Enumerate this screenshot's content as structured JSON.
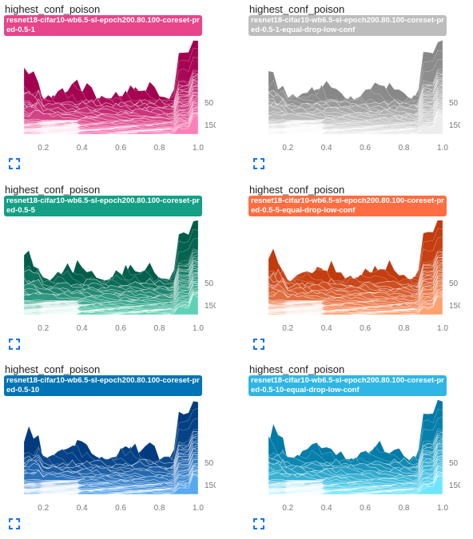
{
  "cards": [
    {
      "title": "highest_conf_poison",
      "run": "resnet18-cifar10-wb6.5-sl-epoch200.80.100-coreset-pred-0.5-1",
      "tag_color": "#e8458b",
      "dark": "#a3004f",
      "light": "#ff7fb8"
    },
    {
      "title": "highest_conf_poison",
      "run": "resnet18-cifar10-wb6.5-sl-epoch200.80.100-coreset-pred-0.5-1-equal-drop-low-conf",
      "tag_color": "#bdbdbd",
      "dark": "#888888",
      "light": "#ececec"
    },
    {
      "title": "highest_conf_poison",
      "run": "resnet18-cifar10-wb6.5-sl-epoch200.80.100-coreset-pred-0.5-5",
      "tag_color": "#15a086",
      "dark": "#005d4a",
      "light": "#5fd2b6"
    },
    {
      "title": "highest_conf_poison",
      "run": "resnet18-cifar10-wb6.5-sl-epoch200.80.100-coreset-pred-0.5-5-equal-drop-low-conf",
      "tag_color": "#ff6e42",
      "dark": "#c23b0e",
      "light": "#ffa070"
    },
    {
      "title": "highest_conf_poison",
      "run": "resnet18-cifar10-wb6.5-sl-epoch200.80.100-coreset-pred-0.5-10",
      "tag_color": "#0074b4",
      "dark": "#003b80",
      "light": "#58a8f2"
    },
    {
      "title": "highest_conf_poison",
      "run": "resnet18-cifar10-wb6.5-sl-epoch200.80.100-coreset-pred-0.5-10-equal-drop-low-conf",
      "tag_color": "#2fb6e4",
      "dark": "#007aa6",
      "light": "#6fe6ff"
    }
  ],
  "chart_data": {
    "type": "area",
    "x_ticks": [
      "0.2",
      "0.4",
      "0.6",
      "0.8",
      "1.0"
    ],
    "xlim": [
      0.1,
      1.0
    ],
    "y_ticks": [
      "50",
      "150"
    ],
    "grid": false
  }
}
